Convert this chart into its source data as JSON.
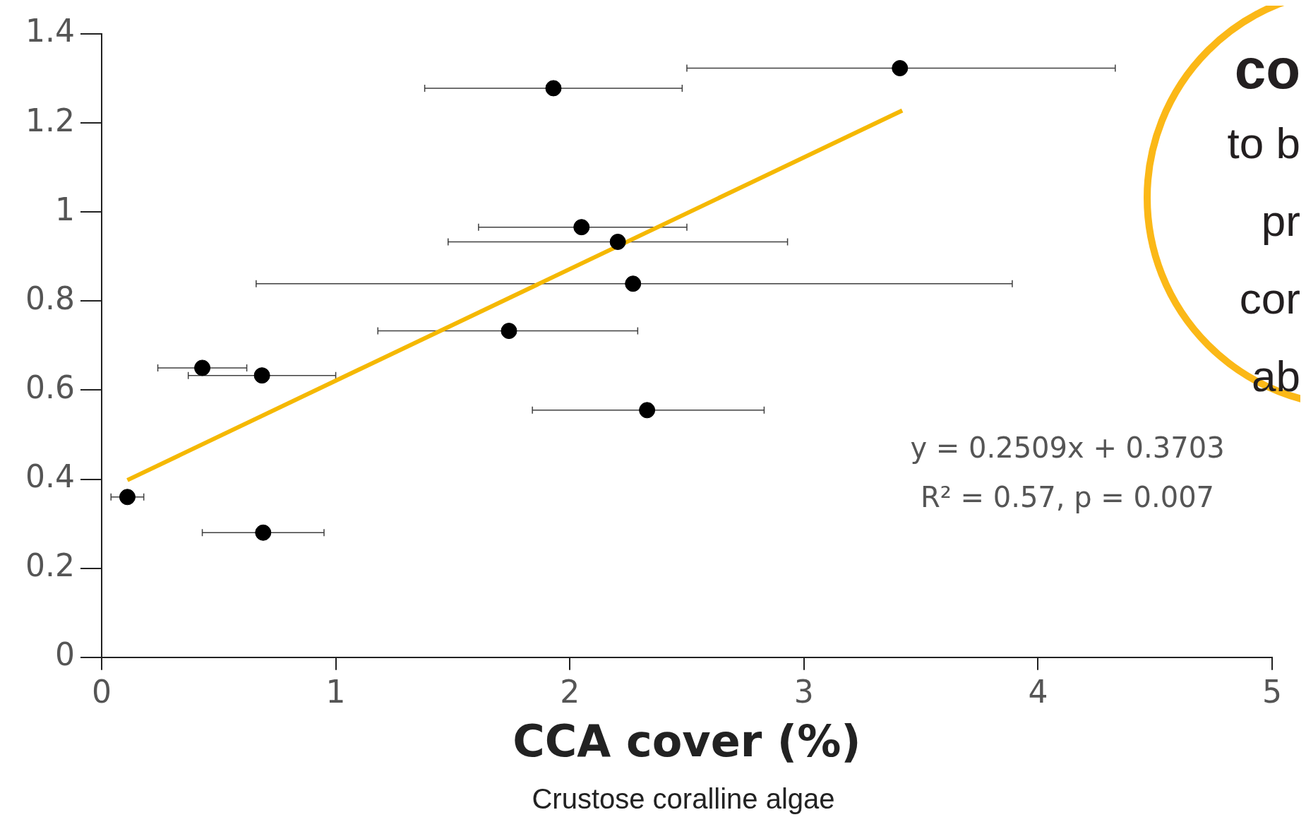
{
  "chart_data": {
    "type": "scatter",
    "xlabel": "CCA cover (%)",
    "annotations": [
      "y = 0.2509x + 0.3703",
      "R² = 0.57, p = 0.007",
      "Crustose coralline algae",
      "co",
      "to b",
      "pr",
      "cor",
      "ab"
    ],
    "xlim": [
      0,
      5
    ],
    "xticks": [
      0,
      1,
      2,
      3,
      4,
      5
    ],
    "ylim": [
      0,
      1.4
    ],
    "yticks": [
      0,
      0.2,
      0.4,
      0.6,
      0.8,
      1,
      1.2,
      1.4
    ],
    "grid": false,
    "legend": false,
    "marker": "circle",
    "series": [
      {
        "color": "#000000",
        "x": [
          0.11,
          0.43,
          0.685,
          0.69,
          1.74,
          1.93,
          2.05,
          2.205,
          2.27,
          2.33,
          3.41
        ],
        "values": [
          0.36,
          0.65,
          0.633,
          0.28,
          0.733,
          1.278,
          0.966,
          0.933,
          0.839,
          0.555,
          1.323
        ],
        "xerrors": [
          [
            0.04,
            0.18
          ],
          [
            0.24,
            0.62
          ],
          [
            0.37,
            1.0
          ],
          [
            0.43,
            0.95
          ],
          [
            1.18,
            2.29
          ],
          [
            1.38,
            2.48
          ],
          [
            1.61,
            2.5
          ],
          [
            1.48,
            2.93
          ],
          [
            0.66,
            3.89
          ],
          [
            1.84,
            2.83
          ],
          [
            2.5,
            4.33
          ]
        ]
      },
      {
        "type": "line",
        "color": "#f5b800",
        "x": [
          0.11,
          3.42
        ],
        "values": [
          0.398,
          1.228
        ],
        "marker": "none"
      }
    ]
  }
}
